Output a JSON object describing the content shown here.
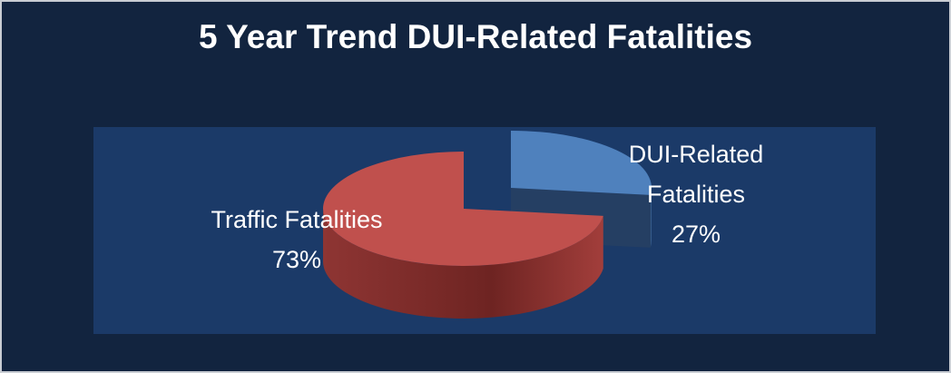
{
  "chart_data": {
    "type": "pie",
    "title": "5 Year Trend DUI-Related Fatalities",
    "categories": [
      "DUI-Related Fatalities",
      "Traffic Fatalities"
    ],
    "values": [
      27,
      73
    ],
    "value_labels": [
      "27%",
      "73%"
    ],
    "colors": [
      "#4f81bd",
      "#c0504d"
    ]
  }
}
